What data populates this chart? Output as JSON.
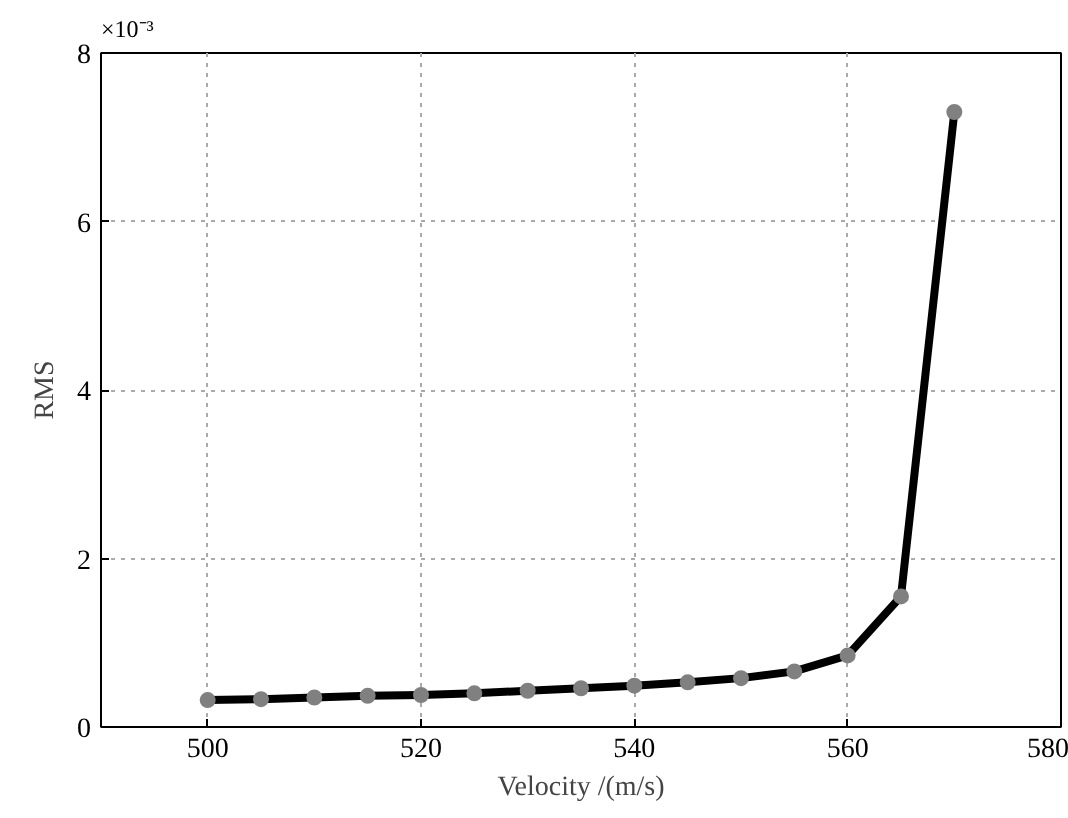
{
  "chart_data": {
    "type": "line",
    "xlabel": "Velocity /(m/s)",
    "ylabel": "RMS",
    "annotations": [
      "×10⁻³"
    ],
    "x": [
      500,
      505,
      510,
      515,
      520,
      525,
      530,
      535,
      540,
      545,
      550,
      555,
      560,
      565,
      570
    ],
    "series": [
      {
        "color": "#000000",
        "values": [
          0.32,
          0.33,
          0.35,
          0.37,
          0.38,
          0.4,
          0.43,
          0.46,
          0.49,
          0.53,
          0.58,
          0.66,
          0.85,
          1.55,
          7.3
        ]
      }
    ],
    "xlim": [
      490,
      580
    ],
    "xticks": [
      500,
      520,
      540,
      560,
      580
    ],
    "ylim": [
      0,
      8
    ],
    "yticks": [
      0,
      2,
      4,
      6,
      8
    ],
    "grid": true,
    "marker": "circle",
    "line_style": "solid"
  }
}
